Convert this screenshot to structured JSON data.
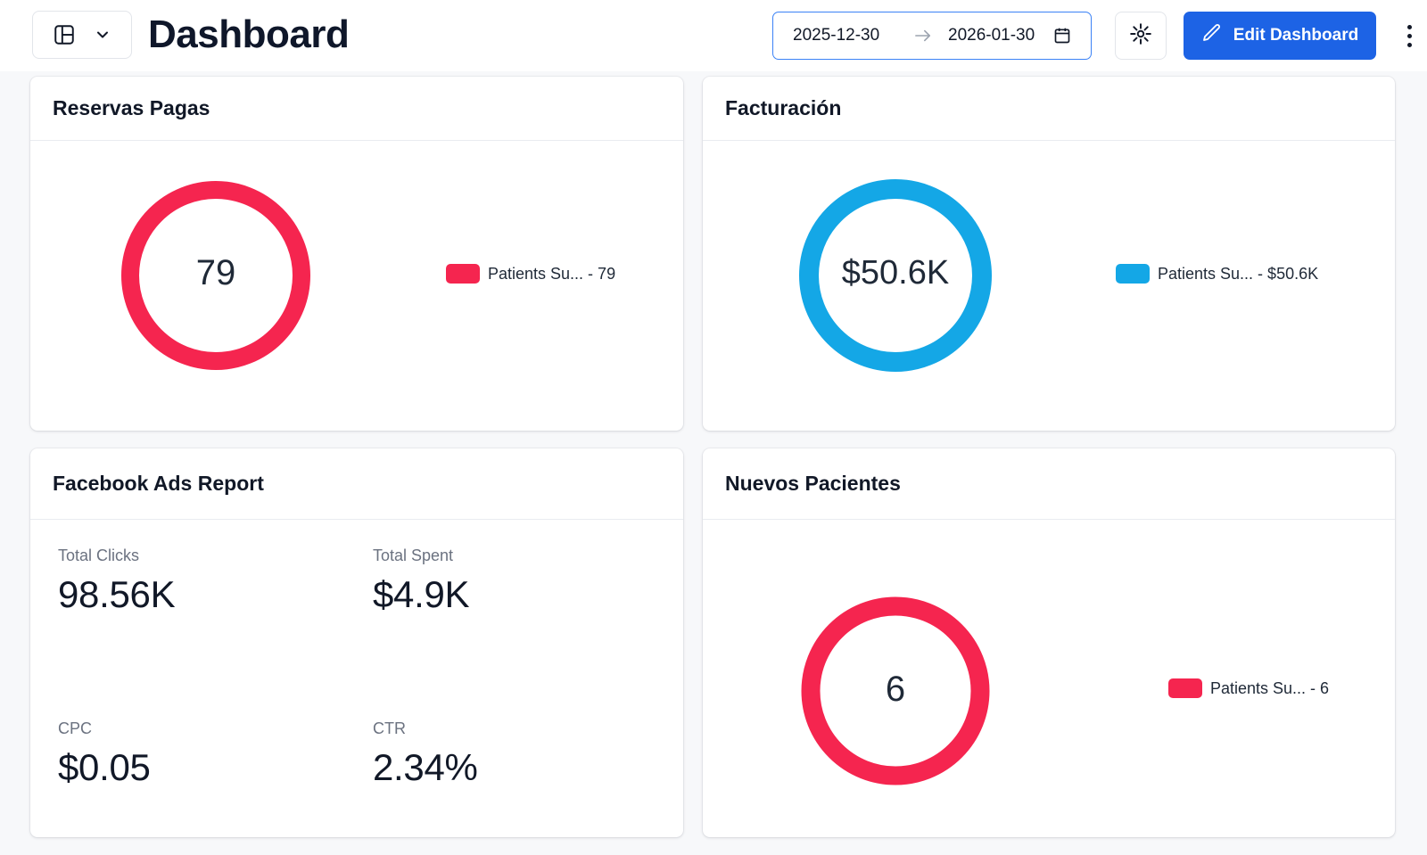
{
  "header": {
    "title": "Dashboard",
    "date_from": "2025-12-30",
    "date_to": "2026-01-30",
    "edit_label": "Edit Dashboard",
    "accent_color": "#1d63e5"
  },
  "cards": {
    "reservas": {
      "title": "Reservas Pagas",
      "value_label": "79",
      "legend": "Patients Su... - 79",
      "color": "#f5254f"
    },
    "facturacion": {
      "title": "Facturación",
      "value_label": "$50.6K",
      "legend": "Patients Su... - $50.6K",
      "color": "#14a7e6"
    },
    "facebook": {
      "title": "Facebook Ads Report",
      "stats": [
        {
          "label": "Total Clicks",
          "value": "98.56K"
        },
        {
          "label": "Total Spent",
          "value": "$4.9K"
        },
        {
          "label": "CPC",
          "value": "$0.05"
        },
        {
          "label": "CTR",
          "value": "2.34%"
        }
      ]
    },
    "nuevos": {
      "title": "Nuevos Pacientes",
      "value_label": "6",
      "legend": "Patients Su... - 6",
      "color": "#f5254f"
    }
  },
  "icons": [
    "layout-grid-icon",
    "chevron-down-icon",
    "arrow-right-icon",
    "calendar-icon",
    "settings-icon",
    "pencil-icon",
    "more-vertical-icon"
  ]
}
